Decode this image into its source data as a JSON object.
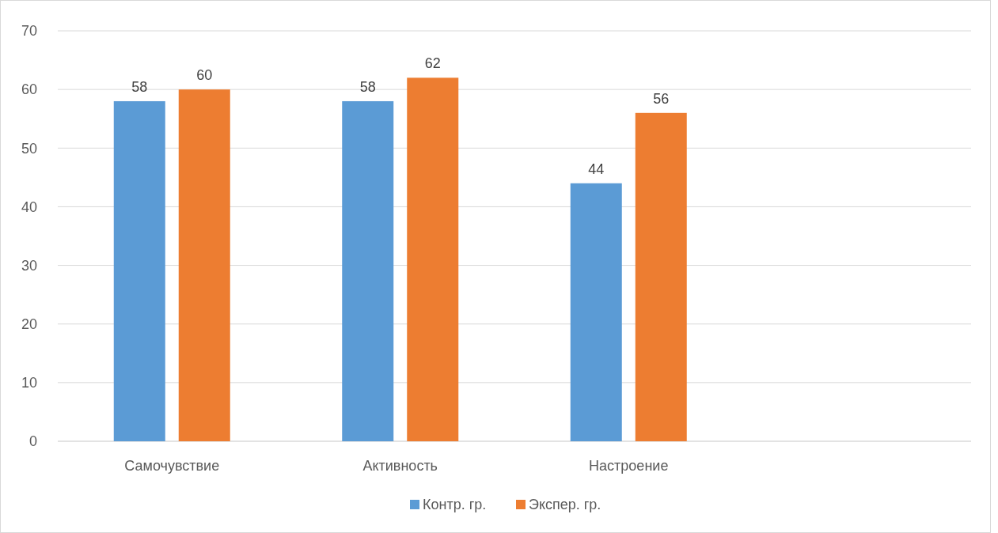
{
  "chart_data": {
    "type": "bar",
    "categories": [
      "Самочувствие",
      "Активность",
      "Настроение",
      null
    ],
    "series": [
      {
        "name": "Контр. гр.",
        "color": "#5b9bd5",
        "values": [
          58,
          58,
          44,
          null
        ]
      },
      {
        "name": "Экспер. гр.",
        "color": "#ed7d31",
        "values": [
          60,
          62,
          56,
          null
        ]
      }
    ],
    "ylim": [
      0,
      70
    ],
    "yticks": [
      0,
      10,
      20,
      30,
      40,
      50,
      60,
      70
    ],
    "grid": "y",
    "legend": "bottom",
    "data_labels": true
  }
}
